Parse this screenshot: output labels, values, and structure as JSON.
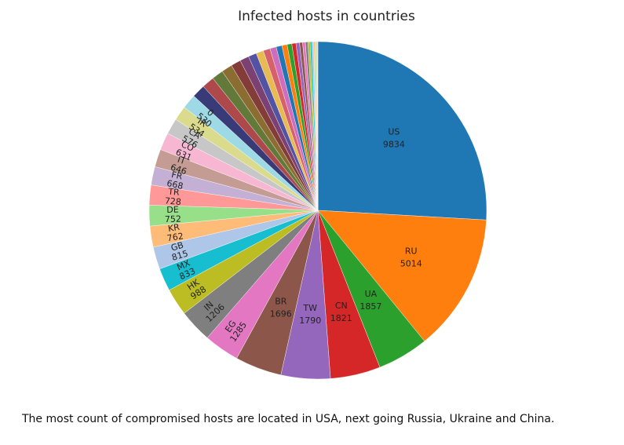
{
  "chart_data": {
    "type": "pie",
    "title": "Infected hosts in countries",
    "annotation": "The most count of compromised hosts are located in USA, next going Russia, Ukraine and China.",
    "categories": [
      "US",
      "RU",
      "UA",
      "CN",
      "TW",
      "BR",
      "EG",
      "IN",
      "HK",
      "MX",
      "GB",
      "KR",
      "DE",
      "TR",
      "FR",
      "IT",
      "CO",
      "CA",
      "IR",
      "0",
      null,
      null,
      null,
      null,
      null,
      null,
      null,
      null,
      null,
      null,
      null,
      null,
      null,
      null,
      null,
      null,
      null,
      null,
      null,
      null,
      null,
      null,
      null,
      null,
      null,
      null
    ],
    "values": [
      9834,
      5014,
      1857,
      1821,
      1790,
      1696,
      1285,
      1206,
      988,
      833,
      815,
      762,
      752,
      728,
      668,
      646,
      631,
      576,
      534,
      530,
      480,
      450,
      420,
      390,
      360,
      330,
      300,
      270,
      250,
      230,
      210,
      190,
      170,
      150,
      130,
      110,
      100,
      90,
      80,
      70,
      60,
      50,
      40,
      30,
      20,
      10
    ],
    "colors": [
      "#1f77b4",
      "#ff7f0e",
      "#2ca02c",
      "#d62728",
      "#9467bd",
      "#8c564b",
      "#e377c2",
      "#7f7f7f",
      "#bcbd22",
      "#17becf",
      "#aec7e8",
      "#ffbb78",
      "#98df8a",
      "#ff9896",
      "#c5b0d5",
      "#c49c94",
      "#f7b6d2",
      "#c7c7c7",
      "#dbdb8d",
      "#9edae5",
      "#393b79",
      "#ad494a",
      "#637939",
      "#8c6d31",
      "#843c39",
      "#7b4173",
      "#5254a3",
      "#e7ba52",
      "#d6616b",
      "#ce6dbd"
    ]
  }
}
